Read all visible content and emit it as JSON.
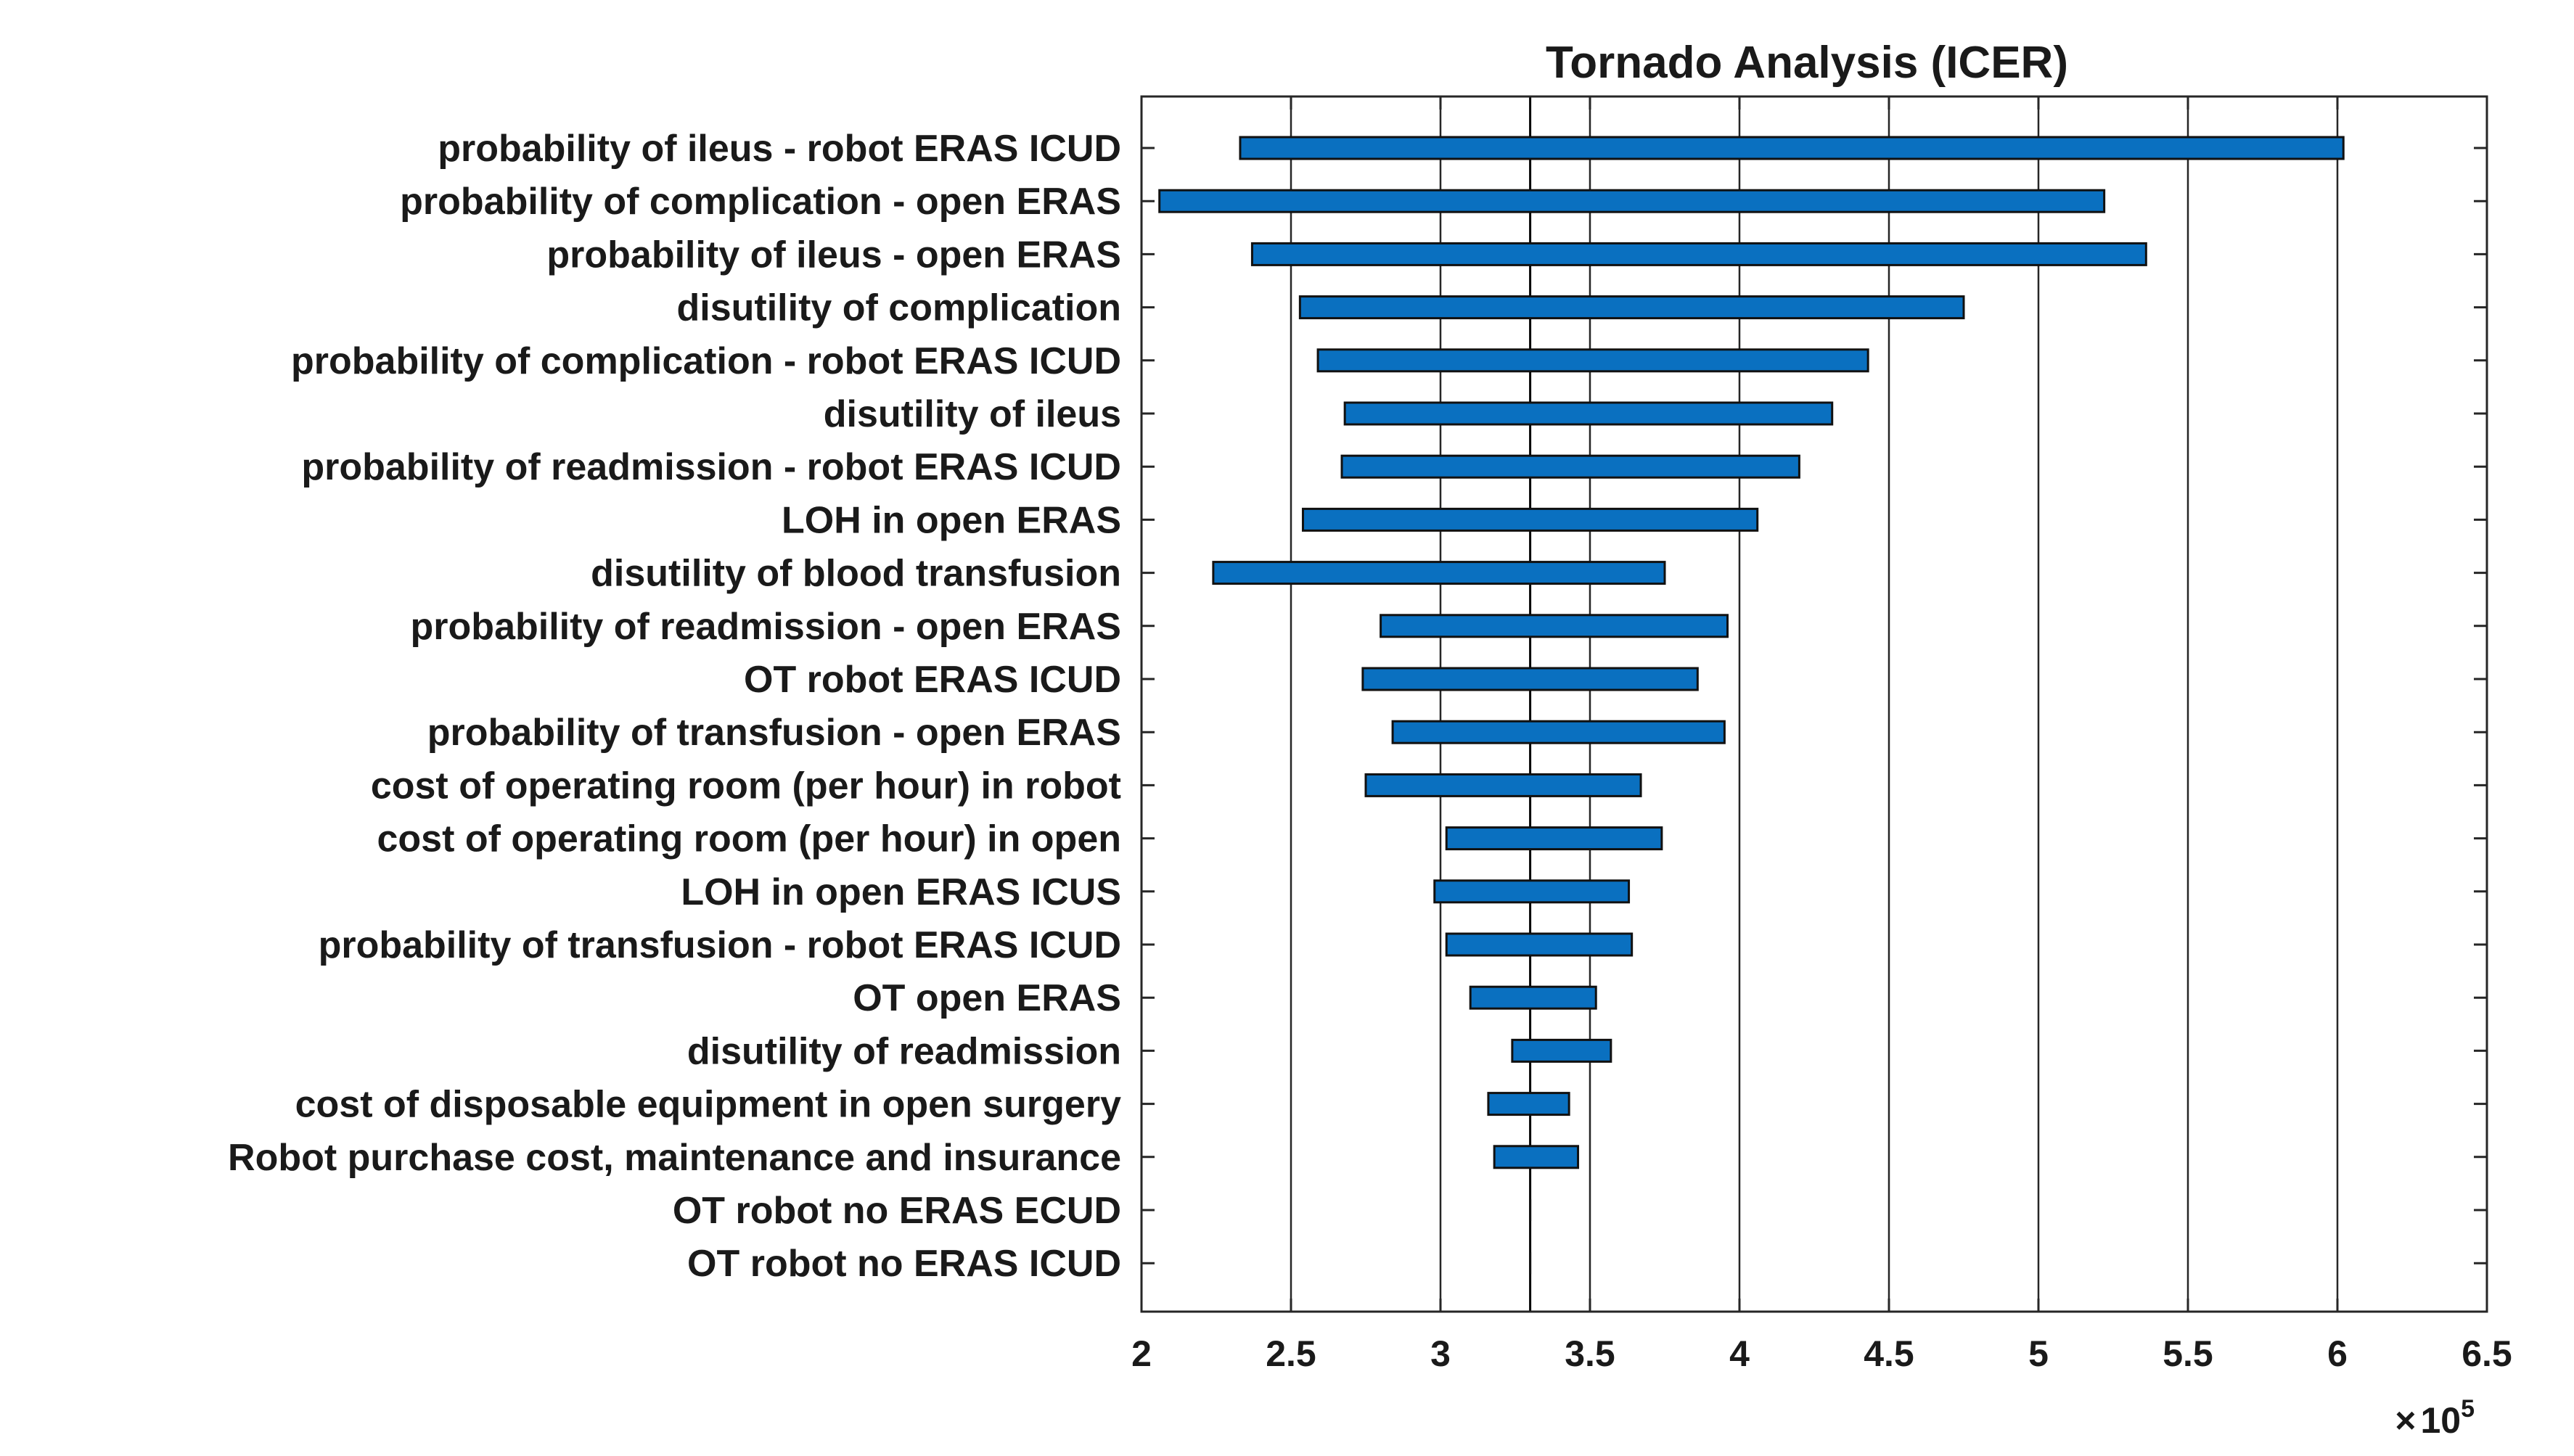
{
  "chart_data": {
    "type": "bar",
    "subtype": "tornado",
    "title": "Tornado Analysis (ICER)",
    "xlabel": "",
    "ylabel": "",
    "x_multiplier": {
      "times": "×",
      "base": "10",
      "exponent": "5"
    },
    "xlim": [
      200000,
      650000
    ],
    "x_ticks": [
      2,
      2.5,
      3,
      3.5,
      4,
      4.5,
      5,
      5.5,
      6,
      6.5
    ],
    "x_tick_labels": [
      "2",
      "2.5",
      "3",
      "3.5",
      "4",
      "4.5",
      "5",
      "5.5",
      "6",
      "6.5"
    ],
    "base_value": 330000,
    "bar_color": "#0a70c0",
    "grid": "vertical",
    "categories": [
      "probability of ileus - robot ERAS ICUD",
      "probability of complication - open ERAS",
      "probability of ileus - open ERAS",
      "disutility of complication",
      "probability of complication - robot ERAS ICUD",
      "disutility of ileus",
      "probability of readmission - robot ERAS ICUD",
      "LOH in open ERAS",
      "disutility of blood transfusion",
      "probability of readmission - open ERAS",
      "OT robot ERAS ICUD",
      "probability of transfusion - open ERAS",
      "cost of operating room (per hour)  in robot",
      "cost of operating room (per hour)  in open",
      "LOH in open ERAS ICUS",
      "probability of transfusion - robot ERAS ICUD",
      "OT open ERAS",
      "disutility of readmission",
      "cost of disposable equipment in open surgery",
      "Robot purchase cost, maintenance and insurance",
      "OT robot no ERAS ECUD",
      "OT robot no ERAS ICUD"
    ],
    "low_values": [
      233000,
      206000,
      237000,
      253000,
      259000,
      268000,
      267000,
      254000,
      224000,
      280000,
      274000,
      284000,
      275000,
      302000,
      298000,
      302000,
      310000,
      324000,
      316000,
      318000,
      330000,
      330000
    ],
    "high_values": [
      602000,
      522000,
      536000,
      475000,
      443000,
      431000,
      420000,
      406000,
      375000,
      396000,
      386000,
      395000,
      367000,
      374000,
      363000,
      364000,
      352000,
      357000,
      343000,
      346000,
      330000,
      330000
    ]
  }
}
